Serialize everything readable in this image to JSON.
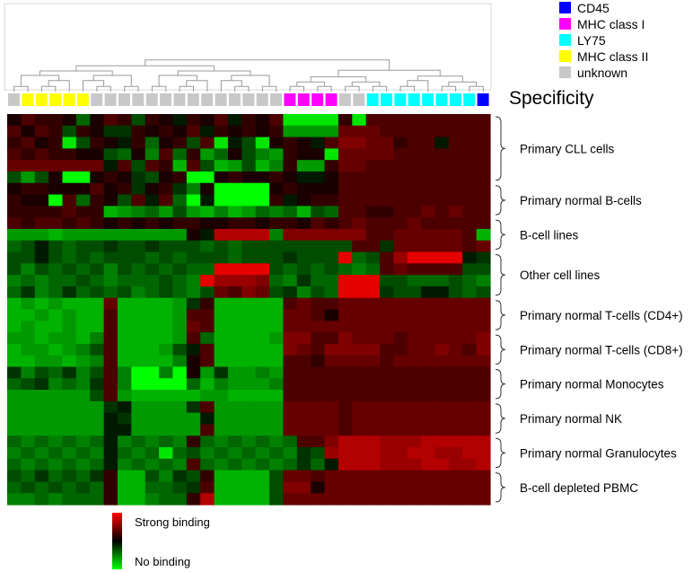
{
  "chart_data": {
    "type": "heatmap",
    "title": "",
    "color_scale": {
      "high_label": "Strong binding",
      "low_label": "No binding",
      "high_color": "#ff0000",
      "mid_color": "#000000",
      "low_color": "#00ff00",
      "range": [
        -1,
        1
      ]
    },
    "specificity_title": "Specificity",
    "specificity_legend": [
      {
        "label": "CD45",
        "color": "#0000ff"
      },
      {
        "label": "MHC class I",
        "color": "#ff00ff"
      },
      {
        "label": "LY75",
        "color": "#00ffff"
      },
      {
        "label": "MHC class II",
        "color": "#ffff00"
      },
      {
        "label": "unknown",
        "color": "#c8c8c8"
      }
    ],
    "column_specificity": [
      "unknown",
      "MHC class II",
      "MHC class II",
      "MHC class II",
      "MHC class II",
      "MHC class II",
      "unknown",
      "unknown",
      "unknown",
      "unknown",
      "unknown",
      "unknown",
      "unknown",
      "unknown",
      "unknown",
      "unknown",
      "unknown",
      "unknown",
      "unknown",
      "unknown",
      "MHC class I",
      "MHC class I",
      "MHC class I",
      "MHC class I",
      "unknown",
      "unknown",
      "LY75",
      "LY75",
      "LY75",
      "LY75",
      "LY75",
      "LY75",
      "LY75",
      "LY75",
      "CD45"
    ],
    "row_groups": [
      {
        "label": "Primary  CLL cells",
        "rows": 6
      },
      {
        "label": "Primary normal B-cells",
        "rows": 3
      },
      {
        "label": "B-cell lines",
        "rows": 3
      },
      {
        "label": "Other cell lines",
        "rows": 4
      },
      {
        "label": "Primary normal T-cells (CD4+)",
        "rows": 3
      },
      {
        "label": "Primary normal T-cells (CD8+)",
        "rows": 3
      },
      {
        "label": "Primary normal Monocytes",
        "rows": 3
      },
      {
        "label": "Primary normal NK",
        "rows": 3
      },
      {
        "label": "Primary normal Granulocytes",
        "rows": 3
      },
      {
        "label": "B-cell depleted PBMC",
        "rows": 3
      }
    ],
    "values": [
      [
        0.1,
        0.3,
        0.2,
        0.2,
        0.1,
        -0.4,
        0.1,
        0.3,
        0.2,
        -0.3,
        0.2,
        0.1,
        -0.1,
        0.2,
        0.1,
        0.3,
        -0.1,
        0.2,
        0.1,
        0.3,
        -0.9,
        -0.9,
        -0.9,
        -0.9,
        0.2,
        -0.9,
        0.3,
        0.3,
        0.3,
        0.3,
        0.3,
        0.3,
        0.3,
        0.3,
        0.3
      ],
      [
        0.3,
        0.1,
        0.3,
        0.2,
        -0.3,
        0.2,
        0.1,
        -0.2,
        -0.2,
        0.2,
        0.1,
        0.2,
        0.1,
        0.3,
        -0.1,
        0.2,
        0.1,
        0.2,
        0.1,
        0.2,
        -0.6,
        -0.6,
        -0.6,
        -0.6,
        0.4,
        0.4,
        0.4,
        0.3,
        0.3,
        0.3,
        0.3,
        0.3,
        0.3,
        0.3,
        0.3
      ],
      [
        0.2,
        0.3,
        0.1,
        0.2,
        -0.9,
        -0.3,
        0.2,
        0.1,
        -0.1,
        0.2,
        -0.4,
        0.1,
        0.2,
        -0.3,
        0.3,
        -0.9,
        -0.1,
        -0.3,
        -0.9,
        0.1,
        0.2,
        0.1,
        -0.1,
        0.3,
        0.5,
        0.5,
        0.4,
        0.4,
        0.2,
        0.3,
        0.3,
        -0.1,
        0.3,
        0.3,
        0.3
      ],
      [
        0.3,
        0.2,
        0.3,
        0.2,
        0.2,
        0.1,
        0.1,
        -0.3,
        -0.4,
        0.1,
        -0.5,
        0.3,
        -0.4,
        0.2,
        -0.6,
        -0.4,
        0.1,
        -0.3,
        -0.5,
        -0.6,
        0.2,
        0.1,
        0.1,
        -0.9,
        0.4,
        0.4,
        0.4,
        0.4,
        0.3,
        0.3,
        0.3,
        0.3,
        0.3,
        0.3,
        0.3
      ],
      [
        0.4,
        0.4,
        0.4,
        0.4,
        0.4,
        0.4,
        0.4,
        -0.1,
        0.3,
        -0.3,
        0.3,
        0.2,
        -0.7,
        0.3,
        -0.3,
        -0.7,
        -0.6,
        -0.3,
        -0.7,
        -0.5,
        0.2,
        -0.6,
        -0.6,
        0.2,
        0.4,
        0.4,
        0.3,
        0.3,
        0.3,
        0.3,
        0.3,
        0.3,
        0.3,
        0.3,
        0.3
      ],
      [
        -0.3,
        -0.6,
        -0.3,
        0.1,
        -1.0,
        -1.0,
        0.1,
        0.2,
        0.1,
        -0.2,
        -0.3,
        0.1,
        0.2,
        -1.0,
        -1.0,
        0.1,
        0.2,
        0.1,
        0.1,
        0.2,
        0.1,
        -0.1,
        -0.1,
        0.1,
        0.3,
        0.3,
        0.3,
        0.3,
        0.3,
        0.3,
        0.3,
        0.3,
        0.3,
        0.3,
        0.3
      ],
      [
        0.1,
        0.2,
        0.2,
        0.1,
        0.1,
        0.1,
        0.3,
        0.1,
        0.2,
        -0.2,
        0.1,
        0.2,
        -0.2,
        -0.5,
        0.1,
        -1.0,
        -1.0,
        -1.0,
        -1.0,
        0.1,
        0.2,
        0.1,
        0.1,
        0.1,
        0.3,
        0.3,
        0.3,
        0.3,
        0.3,
        0.3,
        0.3,
        0.3,
        0.3,
        0.3,
        0.3
      ],
      [
        0.2,
        0.1,
        0.1,
        -1.0,
        0.3,
        -0.4,
        0.2,
        0.1,
        -0.3,
        0.3,
        -0.1,
        0.3,
        -0.4,
        -1.0,
        -0.1,
        -1.0,
        -1.0,
        -1.0,
        -1.0,
        0.2,
        -0.1,
        0.1,
        0.2,
        0.2,
        0.3,
        0.3,
        0.3,
        0.3,
        0.3,
        0.3,
        0.3,
        0.3,
        0.3,
        0.3,
        0.3
      ],
      [
        0.2,
        0.2,
        0.2,
        0.2,
        0.3,
        0.2,
        0.2,
        -0.7,
        -0.6,
        -0.5,
        -0.4,
        -0.6,
        -0.3,
        -0.6,
        -0.7,
        -0.5,
        -0.7,
        -0.6,
        -0.4,
        -0.5,
        -0.4,
        -0.7,
        -0.3,
        -0.4,
        0.3,
        0.3,
        0.2,
        0.2,
        0.3,
        0.3,
        0.4,
        0.3,
        0.4,
        0.3,
        0.3
      ],
      [
        0.3,
        0.2,
        0.3,
        0.3,
        0.2,
        0.3,
        0.2,
        0.1,
        0.2,
        0.1,
        0.2,
        0.1,
        0.2,
        0.2,
        0.1,
        0.1,
        0.2,
        0.2,
        0.1,
        0.2,
        0.2,
        0.1,
        0.3,
        0.2,
        0.3,
        0.4,
        0.3,
        0.3,
        0.3,
        0.4,
        0.3,
        0.3,
        0.3,
        0.3,
        0.3
      ],
      [
        -0.6,
        -0.6,
        -0.6,
        -0.7,
        -0.6,
        -0.6,
        -0.6,
        -0.6,
        -0.6,
        -0.6,
        -0.6,
        -0.6,
        -0.6,
        0.1,
        -0.1,
        0.7,
        0.7,
        0.7,
        0.7,
        -0.5,
        0.5,
        0.5,
        0.5,
        0.5,
        0.5,
        0.5,
        0.3,
        0.3,
        0.4,
        0.4,
        0.4,
        0.4,
        0.4,
        0.3,
        -0.7
      ],
      [
        -0.4,
        -0.3,
        -0.1,
        -0.3,
        -0.4,
        -0.3,
        -0.3,
        -0.2,
        -0.3,
        -0.3,
        -0.2,
        -0.3,
        -0.3,
        -0.3,
        -0.4,
        -0.3,
        -0.4,
        -0.3,
        -0.3,
        -0.3,
        -0.3,
        -0.3,
        -0.3,
        -0.3,
        -0.3,
        0.3,
        0.3,
        -0.2,
        0.4,
        0.4,
        0.4,
        0.4,
        0.4,
        0.3,
        0.4
      ],
      [
        -0.3,
        -0.3,
        -0.1,
        -0.3,
        -0.4,
        -0.3,
        -0.4,
        -0.3,
        -0.3,
        -0.3,
        -0.4,
        -0.3,
        -0.4,
        -0.3,
        -0.3,
        -0.3,
        -0.4,
        -0.3,
        -0.3,
        -0.3,
        -0.2,
        -0.3,
        -0.3,
        -0.3,
        0.9,
        -0.4,
        -0.3,
        0.3,
        0.6,
        0.9,
        0.9,
        0.9,
        0.9,
        -0.1,
        -0.2
      ],
      [
        -0.3,
        -0.5,
        -0.3,
        -0.4,
        -0.3,
        -0.4,
        -0.3,
        -0.5,
        -0.3,
        -0.4,
        -0.3,
        -0.4,
        -0.3,
        -0.4,
        -0.4,
        0.9,
        0.9,
        0.9,
        0.9,
        -0.3,
        -0.4,
        -0.3,
        -0.4,
        -0.3,
        -0.4,
        -0.5,
        -0.4,
        0.3,
        0.4,
        0.3,
        0.3,
        0.3,
        0.3,
        -0.3,
        -0.3
      ],
      [
        -0.5,
        -0.4,
        -0.5,
        -0.4,
        -0.4,
        -0.3,
        -0.4,
        -0.5,
        -0.4,
        -0.4,
        -0.4,
        -0.3,
        -0.4,
        -0.5,
        0.9,
        0.6,
        0.6,
        0.6,
        0.5,
        -0.4,
        -0.5,
        -0.2,
        -0.4,
        -0.4,
        0.9,
        0.9,
        0.9,
        -0.3,
        -0.3,
        -0.4,
        -0.4,
        -0.4,
        -0.3,
        -0.4,
        -0.5
      ],
      [
        -0.4,
        -0.2,
        -0.5,
        -0.4,
        -0.2,
        -0.4,
        -0.3,
        -0.4,
        -0.3,
        -0.5,
        -0.4,
        -0.3,
        -0.4,
        -0.5,
        -0.3,
        0.4,
        0.3,
        0.5,
        0.4,
        -0.3,
        -0.2,
        -0.5,
        -0.3,
        -0.4,
        0.9,
        0.9,
        0.9,
        -0.2,
        -0.3,
        -0.3,
        -0.1,
        -0.1,
        -0.3,
        -0.4,
        -0.3
      ],
      [
        -0.7,
        -0.6,
        -0.7,
        -0.6,
        -0.7,
        -0.7,
        -0.7,
        0.4,
        -0.7,
        -0.7,
        -0.7,
        -0.7,
        -0.6,
        -0.2,
        0.2,
        -0.7,
        -0.7,
        -0.7,
        -0.7,
        -0.7,
        0.3,
        0.4,
        0.3,
        0.3,
        0.4,
        0.4,
        0.4,
        0.4,
        0.4,
        0.4,
        0.4,
        0.4,
        0.4,
        0.4,
        0.4
      ],
      [
        -0.7,
        -0.7,
        -0.6,
        -0.7,
        -0.6,
        -0.7,
        -0.7,
        0.3,
        -0.7,
        -0.7,
        -0.7,
        -0.7,
        -0.6,
        0.3,
        0.3,
        -0.7,
        -0.7,
        -0.7,
        -0.7,
        -0.7,
        0.4,
        0.4,
        0.3,
        0.1,
        0.4,
        0.4,
        0.4,
        0.4,
        0.4,
        0.4,
        0.4,
        0.4,
        0.4,
        0.4,
        0.4
      ],
      [
        -0.7,
        -0.6,
        -0.7,
        -0.7,
        -0.6,
        -0.7,
        -0.7,
        0.3,
        -0.7,
        -0.7,
        -0.7,
        -0.7,
        -0.6,
        0.4,
        0.3,
        -0.7,
        -0.7,
        -0.7,
        -0.7,
        -0.7,
        0.4,
        0.4,
        0.4,
        0.4,
        0.4,
        0.4,
        0.4,
        0.4,
        0.4,
        0.4,
        0.4,
        0.4,
        0.4,
        0.4,
        0.4
      ],
      [
        -0.6,
        -0.6,
        -0.7,
        -0.6,
        -0.6,
        -0.7,
        -0.5,
        0.3,
        -0.7,
        -0.7,
        -0.7,
        -0.7,
        -0.6,
        0.3,
        -0.4,
        -0.7,
        -0.7,
        -0.7,
        -0.7,
        -0.6,
        0.5,
        0.5,
        0.3,
        0.3,
        0.5,
        0.4,
        0.4,
        0.4,
        0.3,
        0.4,
        0.4,
        0.4,
        0.4,
        0.4,
        0.5
      ],
      [
        -0.7,
        -0.6,
        -0.6,
        -0.7,
        -0.6,
        -0.5,
        -0.3,
        0.3,
        -0.7,
        -0.7,
        -0.7,
        -0.6,
        -0.3,
        -0.1,
        0.3,
        -0.7,
        -0.7,
        -0.7,
        -0.7,
        -0.7,
        0.5,
        0.4,
        0.3,
        0.5,
        0.5,
        0.5,
        0.5,
        0.3,
        0.3,
        0.4,
        0.4,
        0.5,
        0.4,
        0.3,
        0.5
      ],
      [
        -0.7,
        -0.7,
        -0.6,
        -0.6,
        -0.7,
        -0.6,
        -0.5,
        0.3,
        -0.7,
        -0.7,
        -0.7,
        -0.7,
        -0.5,
        0.1,
        0.3,
        -0.7,
        -0.7,
        -0.7,
        -0.7,
        -0.7,
        0.3,
        0.3,
        0.2,
        0.4,
        0.4,
        0.4,
        0.4,
        0.3,
        0.4,
        0.4,
        0.4,
        0.4,
        0.4,
        0.4,
        0.4
      ],
      [
        -0.2,
        -0.5,
        -0.3,
        -0.4,
        -0.2,
        -0.5,
        -0.3,
        0.3,
        -0.5,
        -1.0,
        -1.0,
        -0.5,
        -1.0,
        0.1,
        -0.6,
        -0.2,
        -0.6,
        -0.6,
        -0.5,
        -0.6,
        0.3,
        0.3,
        0.3,
        0.3,
        0.3,
        0.3,
        0.3,
        0.3,
        0.3,
        0.3,
        0.3,
        0.3,
        0.3,
        0.3,
        0.3
      ],
      [
        -0.4,
        -0.3,
        -0.2,
        -0.5,
        -0.4,
        -0.5,
        -0.2,
        0.3,
        -0.5,
        -1.0,
        -1.0,
        -1.0,
        -1.0,
        -0.4,
        -0.7,
        -0.5,
        -0.6,
        -0.6,
        -0.6,
        -0.5,
        0.3,
        0.3,
        0.3,
        0.3,
        0.3,
        0.3,
        0.3,
        0.3,
        0.3,
        0.3,
        0.3,
        0.3,
        0.3,
        0.3,
        0.3
      ],
      [
        -0.6,
        -0.6,
        -0.6,
        -0.6,
        -0.6,
        -0.6,
        -0.3,
        0.3,
        -0.6,
        -0.7,
        -0.7,
        -0.7,
        -0.7,
        -0.7,
        -0.6,
        -0.6,
        -0.7,
        -0.7,
        -0.7,
        -0.7,
        0.3,
        0.3,
        0.3,
        0.3,
        0.3,
        0.3,
        0.3,
        0.3,
        0.3,
        0.3,
        0.3,
        0.3,
        0.3,
        0.3,
        0.3
      ],
      [
        -0.6,
        -0.6,
        -0.6,
        -0.6,
        -0.6,
        -0.6,
        -0.6,
        -0.2,
        -0.1,
        -0.6,
        -0.6,
        -0.6,
        -0.6,
        -0.2,
        0.3,
        -0.6,
        -0.6,
        -0.6,
        -0.6,
        -0.6,
        0.4,
        0.4,
        0.4,
        0.4,
        0.3,
        0.4,
        0.4,
        0.4,
        0.4,
        0.4,
        0.4,
        0.4,
        0.4,
        0.4,
        0.4
      ],
      [
        -0.6,
        -0.6,
        -0.6,
        -0.6,
        -0.6,
        -0.6,
        -0.6,
        -0.1,
        -0.2,
        -0.6,
        -0.6,
        -0.6,
        -0.6,
        -0.6,
        -0.1,
        -0.6,
        -0.6,
        -0.6,
        -0.6,
        -0.6,
        0.4,
        0.4,
        0.4,
        0.4,
        0.3,
        0.4,
        0.4,
        0.4,
        0.4,
        0.4,
        0.4,
        0.4,
        0.4,
        0.4,
        0.4
      ],
      [
        -0.6,
        -0.6,
        -0.6,
        -0.6,
        -0.6,
        -0.6,
        -0.6,
        -0.1,
        -0.1,
        -0.6,
        -0.6,
        -0.6,
        -0.6,
        -0.6,
        0.3,
        -0.6,
        -0.6,
        -0.6,
        -0.6,
        -0.6,
        0.4,
        0.4,
        0.4,
        0.4,
        0.3,
        0.4,
        0.4,
        0.4,
        0.4,
        0.4,
        0.4,
        0.4,
        0.4,
        0.4,
        0.4
      ],
      [
        -0.4,
        -0.5,
        -0.4,
        -0.5,
        -0.4,
        -0.5,
        -0.4,
        -0.1,
        -0.5,
        -0.4,
        -0.5,
        -0.4,
        -0.5,
        0.2,
        -0.4,
        -0.5,
        -0.4,
        -0.5,
        -0.4,
        -0.5,
        -0.4,
        0.3,
        0.3,
        0.5,
        0.7,
        0.7,
        0.7,
        0.6,
        0.6,
        0.6,
        0.7,
        0.7,
        0.7,
        0.7,
        0.7
      ],
      [
        -0.5,
        -0.4,
        -0.5,
        -0.4,
        -0.5,
        -0.4,
        -0.5,
        -0.1,
        -0.4,
        -0.5,
        -0.4,
        -0.9,
        -0.4,
        -0.3,
        -0.5,
        -0.4,
        -0.5,
        -0.4,
        -0.5,
        -0.4,
        -0.5,
        -0.2,
        -0.3,
        0.6,
        0.7,
        0.7,
        0.7,
        0.6,
        0.6,
        0.7,
        0.7,
        0.6,
        0.6,
        0.7,
        0.7
      ],
      [
        -0.4,
        -0.5,
        -0.4,
        -0.5,
        -0.4,
        -0.5,
        -0.4,
        -0.1,
        -0.5,
        -0.4,
        -0.5,
        -0.4,
        -0.5,
        0.3,
        -0.4,
        -0.5,
        -0.4,
        -0.5,
        -0.4,
        -0.5,
        -0.4,
        -0.2,
        -0.4,
        -0.1,
        0.7,
        0.7,
        0.7,
        0.6,
        0.6,
        0.6,
        0.7,
        0.7,
        0.6,
        0.6,
        0.7
      ],
      [
        -0.3,
        -0.4,
        -0.2,
        -0.4,
        -0.3,
        -0.4,
        -0.2,
        0.2,
        -0.7,
        -0.7,
        -0.3,
        -0.5,
        -0.2,
        -0.3,
        0.2,
        -0.7,
        -0.7,
        -0.7,
        -0.7,
        -0.3,
        0.4,
        0.4,
        0.3,
        0.4,
        0.4,
        0.4,
        0.4,
        0.4,
        0.4,
        0.4,
        0.4,
        0.4,
        0.4,
        0.4,
        0.4
      ],
      [
        -0.4,
        -0.3,
        -0.4,
        -0.3,
        -0.4,
        -0.3,
        -0.4,
        0.2,
        -0.7,
        -0.7,
        -0.4,
        -0.4,
        -0.3,
        -0.2,
        0.3,
        -0.7,
        -0.7,
        -0.7,
        -0.7,
        -0.3,
        0.5,
        0.5,
        0.1,
        0.4,
        0.4,
        0.4,
        0.4,
        0.4,
        0.4,
        0.4,
        0.4,
        0.4,
        0.4,
        0.4,
        0.4
      ],
      [
        -0.5,
        -0.5,
        -0.4,
        -0.5,
        -0.4,
        -0.4,
        -0.4,
        0.2,
        -0.7,
        -0.7,
        -0.5,
        -0.4,
        -0.4,
        0.2,
        0.7,
        -0.7,
        -0.7,
        -0.7,
        -0.7,
        -0.3,
        0.4,
        0.4,
        0.4,
        0.4,
        0.4,
        0.4,
        0.4,
        0.4,
        0.4,
        0.4,
        0.4,
        0.4,
        0.4,
        0.4,
        0.4
      ]
    ]
  }
}
